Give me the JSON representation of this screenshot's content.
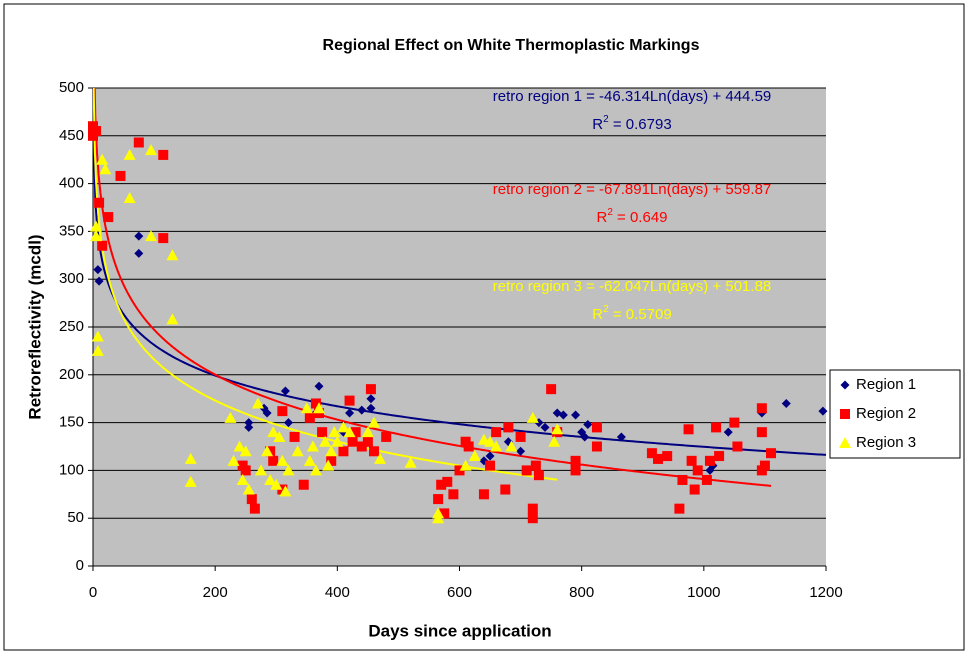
{
  "chart_data": {
    "type": "scatter",
    "title": "Regional Effect on White Thermoplastic Markings",
    "x_label": "Days since application",
    "y_label": "Retroreflectivity (mcdl)",
    "xlim": [
      0,
      1200
    ],
    "xticks": [
      0,
      200,
      400,
      600,
      800,
      1000,
      1200
    ],
    "ylim": [
      0,
      500
    ],
    "yticks": [
      0,
      50,
      100,
      150,
      200,
      250,
      300,
      350,
      400,
      450,
      500
    ],
    "grid": true,
    "legend": "right",
    "series": [
      {
        "name": "Region 1",
        "color": "#000080",
        "marker": "diamond",
        "x": [
          8,
          10,
          75,
          75,
          255,
          255,
          280,
          285,
          315,
          320,
          370,
          365,
          410,
          420,
          440,
          455,
          455,
          640,
          650,
          680,
          700,
          730,
          740,
          760,
          770,
          790,
          800,
          805,
          810,
          865,
          1010,
          1015,
          1040,
          1095,
          1135,
          1195
        ],
        "values": [
          310,
          298,
          345,
          327,
          145,
          150,
          165,
          160,
          183,
          150,
          188,
          160,
          140,
          160,
          163,
          175,
          165,
          110,
          115,
          130,
          120,
          150,
          145,
          160,
          158,
          158,
          140,
          135,
          148,
          135,
          100,
          105,
          140,
          160,
          170,
          162
        ]
      },
      {
        "name": "Region 2",
        "color": "#ff0000",
        "marker": "square",
        "x": [
          0,
          0,
          5,
          10,
          15,
          25,
          45,
          75,
          115,
          115,
          260,
          265,
          245,
          250,
          290,
          295,
          310,
          310,
          330,
          345,
          355,
          365,
          370,
          375,
          390,
          410,
          420,
          425,
          430,
          440,
          450,
          455,
          460,
          480,
          565,
          570,
          575,
          580,
          590,
          600,
          610,
          615,
          640,
          650,
          660,
          675,
          680,
          700,
          710,
          720,
          720,
          725,
          730,
          750,
          760,
          790,
          790,
          825,
          825,
          915,
          925,
          940,
          960,
          965,
          975,
          980,
          985,
          990,
          1005,
          1010,
          1020,
          1025,
          1050,
          1055,
          1095,
          1095,
          1095,
          1100,
          1110
        ],
        "values": [
          460,
          450,
          455,
          380,
          335,
          365,
          408,
          443,
          430,
          343,
          70,
          60,
          105,
          100,
          120,
          110,
          162,
          80,
          135,
          85,
          155,
          170,
          160,
          140,
          110,
          120,
          173,
          130,
          140,
          125,
          130,
          185,
          120,
          135,
          70,
          85,
          55,
          88,
          75,
          100,
          130,
          125,
          75,
          105,
          140,
          80,
          145,
          135,
          100,
          60,
          50,
          105,
          95,
          185,
          140,
          110,
          100,
          145,
          125,
          118,
          112,
          115,
          60,
          90,
          143,
          110,
          80,
          100,
          90,
          110,
          145,
          115,
          150,
          125,
          165,
          140,
          100,
          105,
          118
        ]
      },
      {
        "name": "Region 3",
        "color": "#ffff00",
        "marker": "triangle",
        "x": [
          5,
          5,
          8,
          8,
          15,
          20,
          60,
          60,
          95,
          95,
          130,
          130,
          160,
          160,
          225,
          230,
          240,
          245,
          250,
          255,
          270,
          275,
          285,
          290,
          295,
          300,
          305,
          310,
          315,
          320,
          335,
          350,
          355,
          360,
          365,
          370,
          380,
          385,
          390,
          395,
          400,
          410,
          420,
          450,
          460,
          470,
          520,
          565,
          565,
          610,
          625,
          640,
          650,
          660,
          685,
          720,
          755,
          760
        ],
        "values": [
          355,
          345,
          240,
          225,
          425,
          415,
          430,
          385,
          435,
          345,
          325,
          258,
          112,
          88,
          155,
          110,
          125,
          90,
          120,
          80,
          170,
          100,
          120,
          90,
          140,
          85,
          135,
          110,
          78,
          100,
          120,
          165,
          110,
          125,
          100,
          165,
          130,
          105,
          120,
          140,
          130,
          145,
          140,
          140,
          150,
          112,
          108,
          50,
          55,
          105,
          115,
          132,
          130,
          125,
          125,
          155,
          130,
          143
        ]
      }
    ],
    "trendlines": [
      {
        "series": "Region 1",
        "slope": -46.314,
        "intercept": 444.59,
        "r2": 0.6793,
        "x_range": [
          1,
          1200
        ],
        "equation": "retro region 1 = -46.314Ln(days) + 444.59",
        "r2_text": [
          "R",
          "2",
          " = 0.6793"
        ]
      },
      {
        "series": "Region 2",
        "slope": -67.891,
        "intercept": 559.87,
        "r2": 0.649,
        "x_range": [
          1,
          1110
        ],
        "equation": "retro region 2 = -67.891Ln(days) + 559.87",
        "r2_text": [
          "R",
          "2",
          " = 0.649"
        ]
      },
      {
        "series": "Region 3",
        "slope": -62.047,
        "intercept": 501.88,
        "r2": 0.5709,
        "x_range": [
          1,
          760
        ],
        "equation": "retro region 3 = -62.047Ln(days) + 501.88",
        "r2_text": [
          "R",
          "2",
          " = 0.5709"
        ]
      }
    ]
  }
}
